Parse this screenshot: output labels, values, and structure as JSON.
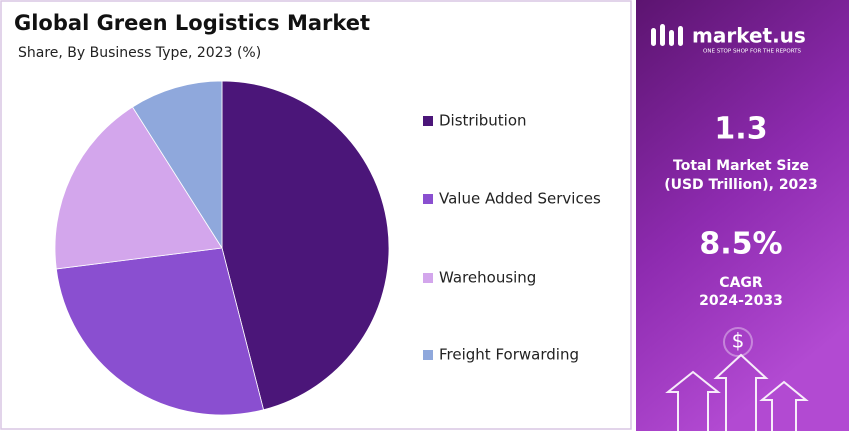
{
  "chart_data": {
    "type": "pie",
    "title": "Global Green Logistics Market",
    "subtitle": "Share, By Business Type, 2023 (%)",
    "categories": [
      "Distribution",
      "Value Added Services",
      "Warehousing",
      "Freight Forwarding"
    ],
    "values": [
      46,
      27,
      18,
      9
    ],
    "colors": [
      "#4b1679",
      "#8a4fd0",
      "#d3a6ec",
      "#8fa8dc"
    ],
    "legend": "right"
  },
  "panel": {
    "brand": "market.us",
    "tagline": "ONE STOP SHOP FOR THE REPORTS",
    "stats": [
      {
        "value": "1.3",
        "label_lines": [
          "Total Market Size",
          "(USD Trillion), 2023"
        ]
      },
      {
        "value": "8.5%",
        "label_lines": [
          "CAGR",
          "2024-2033"
        ]
      }
    ],
    "icon": "$"
  }
}
